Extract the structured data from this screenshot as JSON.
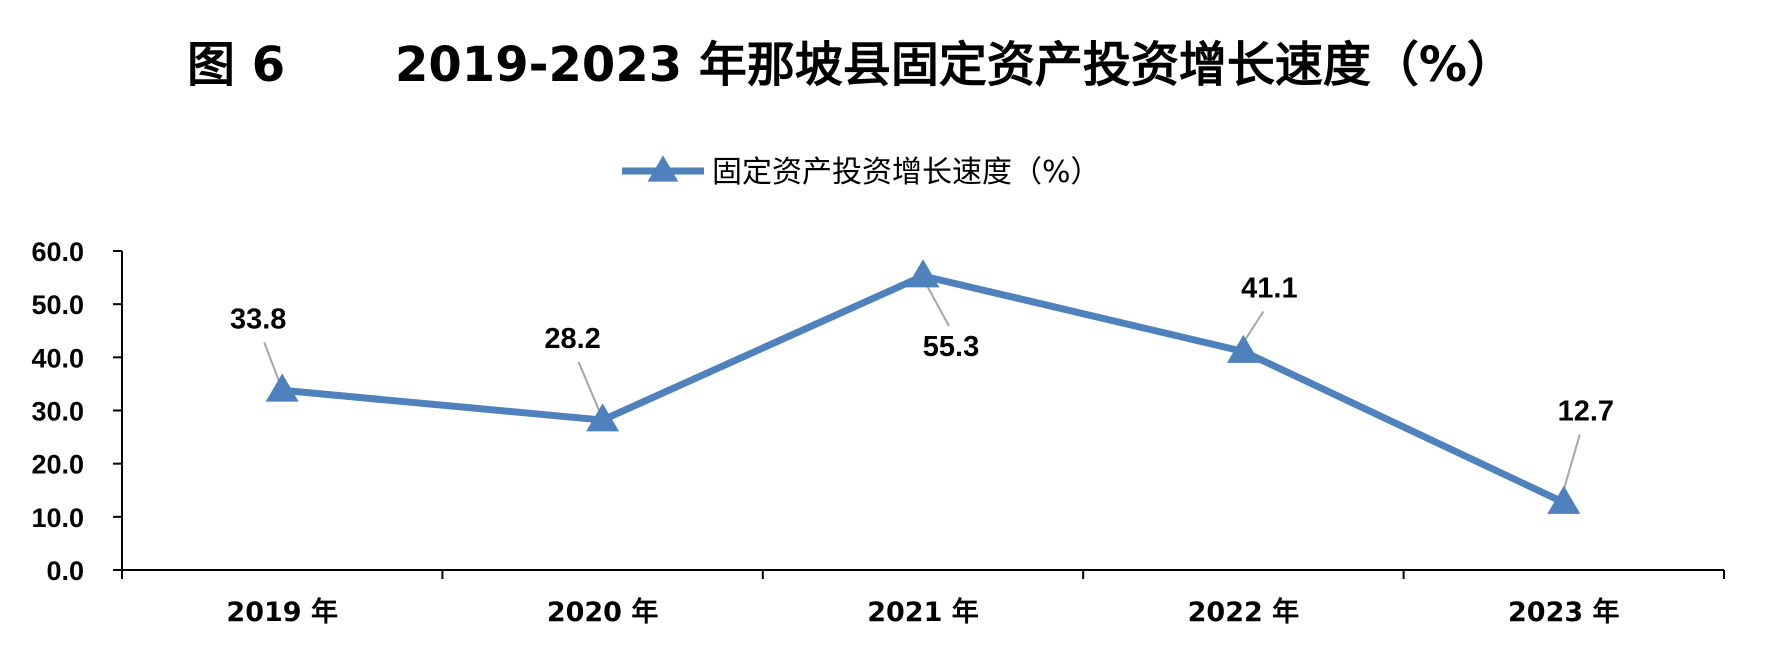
{
  "figure": {
    "number": "图 6",
    "title": "2019-2023 年那坡县固定资产投资增长速度（%）"
  },
  "chart_data": {
    "type": "line",
    "title": "图 6 2019-2023 年那坡县固定资产投资增长速度（%）",
    "categories": [
      "2019 年",
      "2020 年",
      "2021 年",
      "2022 年",
      "2023 年"
    ],
    "series": [
      {
        "name": "固定资产投资增长速度（%）",
        "values": [
          33.8,
          28.2,
          55.3,
          41.1,
          12.7
        ],
        "value_labels": [
          "33.8",
          "28.2",
          "55.3",
          "41.1",
          "12.7"
        ],
        "color": "#4F81BD",
        "marker": "triangle"
      }
    ],
    "ylim": [
      0,
      60
    ],
    "yticks": [
      0,
      10,
      20,
      30,
      40,
      50,
      60
    ],
    "ytick_labels": [
      "0.0",
      "10.0",
      "20.0",
      "30.0",
      "40.0",
      "50.0",
      "60.0"
    ],
    "xlabel": "",
    "ylabel": "",
    "grid": false,
    "legend_position": "top-center"
  }
}
